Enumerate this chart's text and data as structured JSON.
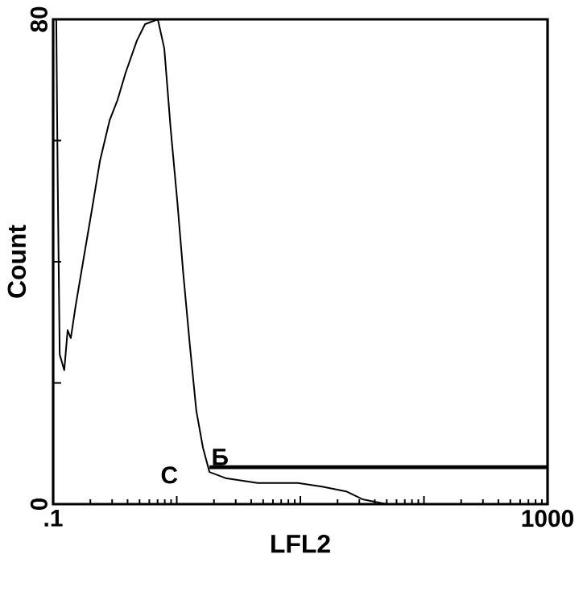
{
  "chart_data": {
    "type": "line",
    "xlabel": "LFL2",
    "ylabel": "Count",
    "log": "x",
    "xlim": [
      0.1,
      1000
    ],
    "ylim": [
      0,
      80
    ],
    "xticks": [
      {
        "value": 0.1,
        "label": ".1"
      },
      {
        "value": 1,
        "label": null
      },
      {
        "value": 10,
        "label": null
      },
      {
        "value": 100,
        "label": null
      },
      1000
    ],
    "yticks": [
      0,
      {
        "value": 20,
        "label": null
      },
      {
        "value": 40,
        "label": null
      },
      {
        "value": 60,
        "label": null
      },
      80
    ],
    "grid": false,
    "marker": "none",
    "line_style": "solid",
    "series": [
      {
        "color": "#000000",
        "x": [
          0.106,
          0.109,
          0.113,
          0.123,
          0.131,
          0.139,
          0.152,
          0.177,
          0.206,
          0.239,
          0.286,
          0.332,
          0.386,
          0.476,
          0.554,
          0.703,
          0.793,
          0.893,
          1.01,
          1.13,
          1.28,
          1.44,
          1.63,
          1.84,
          2.48,
          4.52,
          9.55,
          15.0,
          23.5,
          31.8,
          49.8
        ],
        "values": [
          80,
          52.6,
          24.7,
          22.1,
          28.7,
          27.4,
          32.7,
          40.7,
          48.6,
          56.6,
          63.3,
          66.7,
          71.2,
          76.5,
          79.2,
          80,
          75.2,
          61.9,
          50.0,
          38.0,
          26.0,
          15.4,
          9.3,
          5.3,
          4.3,
          3.5,
          3.5,
          2.9,
          2.1,
          0.8,
          0
        ]
      },
      {
        "name": "Б",
        "color": "#000000",
        "x": [
          1.84,
          1000
        ],
        "values": [
          6.1,
          6.1
        ]
      }
    ],
    "annotations": [
      "C"
    ]
  }
}
